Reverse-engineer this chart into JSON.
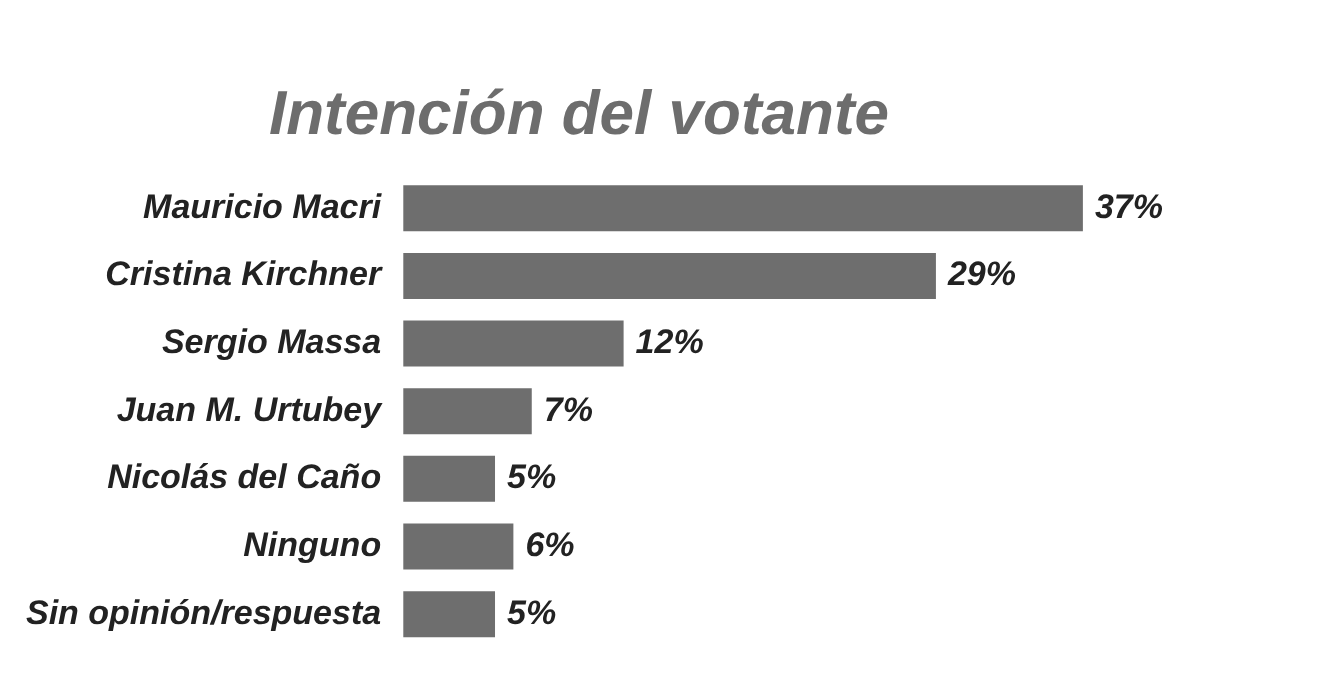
{
  "chart_data": {
    "type": "bar",
    "orientation": "horizontal",
    "title": "Intención del votante",
    "categories": [
      "Mauricio Macri",
      "Cristina Kirchner",
      "Sergio Massa",
      "Juan M. Urtubey",
      "Nicolás del Caño",
      "Ninguno",
      "Sin opinión/respuesta"
    ],
    "values": [
      37,
      29,
      12,
      7,
      5,
      6,
      5
    ],
    "value_labels": [
      "37%",
      "29%",
      "12%",
      "7%",
      "5%",
      "6%",
      "5%"
    ],
    "color": "#6e6e6e",
    "legend": false,
    "tick_labels": "y"
  }
}
